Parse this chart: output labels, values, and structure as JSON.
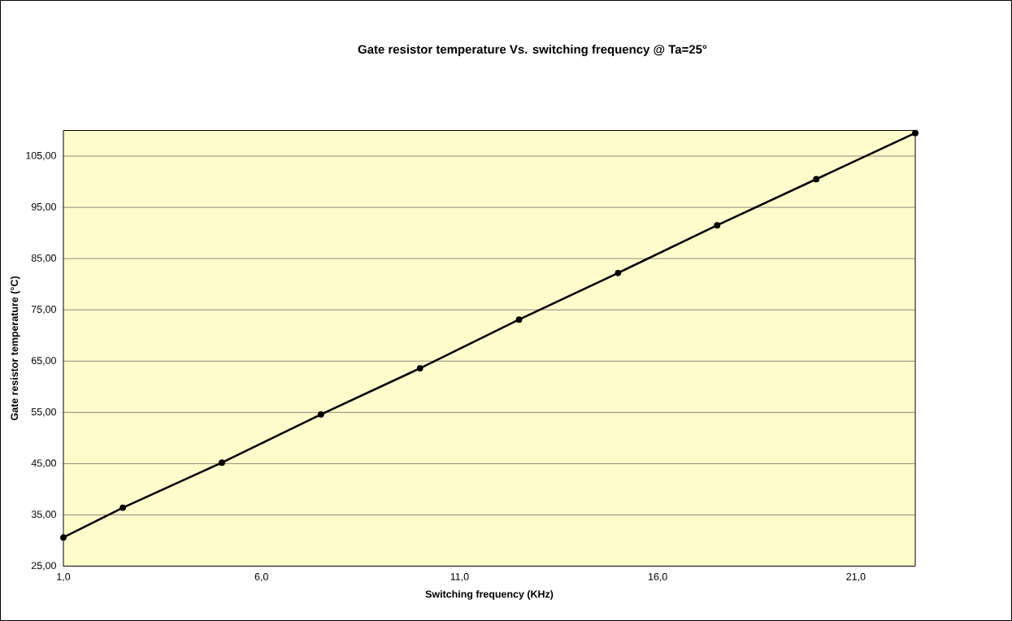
{
  "chart_data": {
    "type": "line",
    "title": "Gate resistor temperature Vs. switching frequency @ Ta=25°",
    "xlabel": "Switching frequency (KHz)",
    "ylabel": "Gate resistor temperature (°C)",
    "x": [
      1.0,
      2.5,
      5.0,
      7.5,
      10.0,
      12.5,
      15.0,
      17.5,
      20.0,
      22.5
    ],
    "series": [
      {
        "color": "#000000",
        "values": [
          30.6,
          36.4,
          45.2,
          54.6,
          63.6,
          73.1,
          82.2,
          91.5,
          100.5,
          109.5
        ]
      }
    ],
    "xlim": [
      1.0,
      22.5
    ],
    "ylim": [
      25,
      110
    ],
    "xticks": [
      {
        "value": 1,
        "label": "1,0"
      },
      {
        "value": 6,
        "label": "6,0"
      },
      {
        "value": 11,
        "label": "11,0"
      },
      {
        "value": 16,
        "label": "16,0"
      },
      {
        "value": 21,
        "label": "21,0"
      }
    ],
    "yticks": [
      {
        "value": 25,
        "label": "25,00"
      },
      {
        "value": 35,
        "label": "35,00"
      },
      {
        "value": 45,
        "label": "45,00"
      },
      {
        "value": 55,
        "label": "55,00"
      },
      {
        "value": 65,
        "label": "65,00"
      },
      {
        "value": 75,
        "label": "75,00"
      },
      {
        "value": 85,
        "label": "85,00"
      },
      {
        "value": 95,
        "label": "95,00"
      },
      {
        "value": 105,
        "label": "105,00"
      }
    ],
    "grid": "y",
    "marker": "circle",
    "line_style": "solid"
  }
}
